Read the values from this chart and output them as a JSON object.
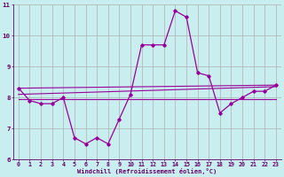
{
  "xlabel": "Windchill (Refroidissement éolien,°C)",
  "bg_color": "#c8eef0",
  "grid_color": "#b0b0b0",
  "line_color": "#990099",
  "xlim": [
    -0.5,
    23.5
  ],
  "ylim": [
    6,
    11
  ],
  "yticks": [
    6,
    7,
    8,
    9,
    10,
    11
  ],
  "xticks": [
    0,
    1,
    2,
    3,
    4,
    5,
    6,
    7,
    8,
    9,
    10,
    11,
    12,
    13,
    14,
    15,
    16,
    17,
    18,
    19,
    20,
    21,
    22,
    23
  ],
  "series1_x": [
    0,
    1,
    2,
    3,
    4,
    5,
    6,
    7,
    8,
    9,
    10,
    11,
    12,
    13,
    14,
    15,
    16,
    17,
    18,
    19,
    20,
    21,
    22,
    23
  ],
  "series1_y": [
    8.3,
    7.9,
    7.8,
    7.8,
    8.0,
    6.7,
    6.5,
    6.7,
    6.5,
    7.3,
    8.1,
    9.7,
    9.7,
    9.7,
    10.8,
    10.6,
    8.8,
    8.7,
    7.5,
    7.8,
    8.0,
    8.2,
    8.2,
    8.4
  ],
  "series2_x": [
    0,
    23
  ],
  "series2_y": [
    7.95,
    7.95
  ],
  "series3_x": [
    0,
    23
  ],
  "series3_y": [
    8.3,
    8.4
  ],
  "series4_x": [
    0,
    23
  ],
  "series4_y": [
    8.1,
    8.35
  ],
  "xlabel_fontsize": 5.0,
  "tick_fontsize": 4.8
}
